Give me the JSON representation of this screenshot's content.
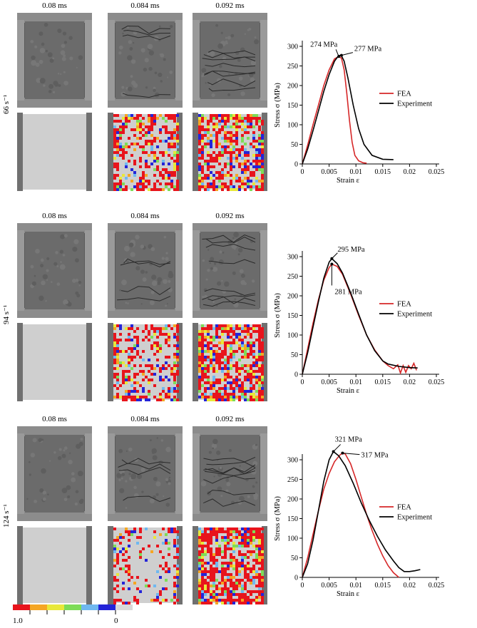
{
  "rows": [
    {
      "rate": "66 s⁻¹",
      "times": [
        "0.08 ms",
        "0.084 ms",
        "0.092 ms"
      ],
      "fea_damage_levels": [
        0.0,
        0.55,
        0.75
      ],
      "chart_data": {
        "type": "line",
        "xlabel": "Strain ε",
        "ylabel": "Stress σ (MPa)",
        "xlim": [
          0,
          0.025
        ],
        "ylim": [
          0,
          300
        ],
        "xticks": [
          "0",
          "0.005",
          "0.01",
          "0.015",
          "0.02",
          "0.025"
        ],
        "yticks": [
          "0",
          "50",
          "100",
          "150",
          "200",
          "250",
          "300"
        ],
        "legend_position": "right-middle",
        "series": [
          {
            "name": "FEA",
            "color": "#d62728",
            "x": [
              0,
              0.001,
              0.002,
              0.003,
              0.004,
              0.005,
              0.006,
              0.0068,
              0.0073,
              0.0078,
              0.0083,
              0.0088,
              0.0093,
              0.0098,
              0.0105,
              0.0113,
              0.012
            ],
            "y": [
              0,
              48,
              100,
              150,
              200,
              240,
              268,
              274,
              270,
              240,
              180,
              110,
              55,
              22,
              8,
              3,
              2
            ]
          },
          {
            "name": "Experiment",
            "color": "#000000",
            "x": [
              0,
              0.001,
              0.002,
              0.003,
              0.004,
              0.005,
              0.006,
              0.0068,
              0.0073,
              0.0078,
              0.0085,
              0.0095,
              0.0105,
              0.0115,
              0.013,
              0.015,
              0.017
            ],
            "y": [
              0,
              38,
              85,
              135,
              185,
              228,
              262,
              277,
              276,
              262,
              220,
              150,
              90,
              50,
              22,
              12,
              11
            ]
          }
        ],
        "annotations": [
          {
            "text": "274 MPa",
            "x": 0.0068,
            "y": 274
          },
          {
            "text": "277 MPa",
            "x": 0.0073,
            "y": 277
          }
        ]
      }
    },
    {
      "rate": "94 s⁻¹",
      "times": [
        "0.08 ms",
        "0.084 ms",
        "0.092 ms"
      ],
      "fea_damage_levels": [
        0.0,
        0.45,
        0.8
      ],
      "chart_data": {
        "type": "line",
        "xlabel": "Strain ε",
        "ylabel": "Stress σ (MPa)",
        "xlim": [
          0,
          0.025
        ],
        "ylim": [
          0,
          300
        ],
        "xticks": [
          "0",
          "0.005",
          "0.01",
          "0.015",
          "0.02",
          "0.025"
        ],
        "yticks": [
          "0",
          "50",
          "100",
          "150",
          "200",
          "250",
          "300"
        ],
        "legend_position": "right-middle",
        "series": [
          {
            "name": "FEA",
            "color": "#d62728",
            "x": [
              0,
              0.001,
              0.002,
              0.003,
              0.004,
              0.005,
              0.0055,
              0.0065,
              0.0075,
              0.009,
              0.0105,
              0.012,
              0.0135,
              0.015,
              0.016,
              0.017,
              0.0178,
              0.0183,
              0.0188,
              0.0193,
              0.0198,
              0.0203,
              0.0208,
              0.0213
            ],
            "y": [
              0,
              65,
              130,
              190,
              240,
              272,
              281,
              275,
              255,
              205,
              150,
              100,
              62,
              34,
              22,
              14,
              24,
              3,
              22,
              5,
              22,
              14,
              28,
              10
            ]
          },
          {
            "name": "Experiment",
            "color": "#000000",
            "x": [
              0,
              0.001,
              0.002,
              0.003,
              0.004,
              0.005,
              0.0055,
              0.0065,
              0.0075,
              0.009,
              0.0105,
              0.012,
              0.0135,
              0.015,
              0.016,
              0.018,
              0.02,
              0.0215
            ],
            "y": [
              0,
              55,
              120,
              185,
              245,
              286,
              295,
              282,
              258,
              208,
              153,
              100,
              60,
              34,
              26,
              20,
              17,
              16
            ]
          }
        ],
        "annotations": [
          {
            "text": "295 MPa",
            "x": 0.0055,
            "y": 295
          },
          {
            "text": "281 MPa",
            "x": 0.0055,
            "y": 281
          }
        ]
      }
    },
    {
      "rate": "124 s⁻¹",
      "times": [
        "0.08 ms",
        "0.084 ms",
        "0.092 ms"
      ],
      "fea_damage_levels": [
        0.0,
        0.2,
        0.85
      ],
      "chart_data": {
        "type": "line",
        "xlabel": "Strain ε",
        "ylabel": "Stress σ (MPa)",
        "xlim": [
          0,
          0.025
        ],
        "ylim": [
          0,
          300
        ],
        "xticks": [
          "0",
          "0.005",
          "0.01",
          "0.015",
          "0.02",
          "0.025"
        ],
        "yticks": [
          "0",
          "50",
          "100",
          "150",
          "200",
          "250",
          "300"
        ],
        "legend_position": "right-middle",
        "series": [
          {
            "name": "FEA",
            "color": "#d62728",
            "x": [
              0,
              0.001,
              0.002,
              0.003,
              0.004,
              0.005,
              0.006,
              0.007,
              0.0075,
              0.008,
              0.009,
              0.01,
              0.011,
              0.012,
              0.013,
              0.014,
              0.015,
              0.016,
              0.017,
              0.018
            ],
            "y": [
              0,
              50,
              110,
              170,
              225,
              265,
              295,
              312,
              317,
              315,
              290,
              250,
              205,
              160,
              120,
              85,
              55,
              30,
              12,
              0
            ]
          },
          {
            "name": "Experiment",
            "color": "#000000",
            "x": [
              0,
              0.001,
              0.002,
              0.003,
              0.004,
              0.005,
              0.0058,
              0.0068,
              0.008,
              0.0095,
              0.011,
              0.0125,
              0.014,
              0.0155,
              0.017,
              0.018,
              0.019,
              0.02,
              0.021,
              0.022
            ],
            "y": [
              0,
              35,
              95,
              170,
              245,
              300,
              321,
              310,
              285,
              240,
              190,
              145,
              105,
              70,
              42,
              25,
              15,
              15,
              17,
              20
            ]
          }
        ],
        "annotations": [
          {
            "text": "321 MPa",
            "x": 0.0058,
            "y": 321
          },
          {
            "text": "317 MPa",
            "x": 0.0075,
            "y": 317
          }
        ]
      }
    }
  ],
  "colorbar": {
    "max_label": "1.0",
    "min_label": "0",
    "colors": [
      "#e8141c",
      "#f5a623",
      "#e8e83a",
      "#7ddc57",
      "#6fb8f0",
      "#2424d8",
      "#d9d9d9"
    ]
  }
}
